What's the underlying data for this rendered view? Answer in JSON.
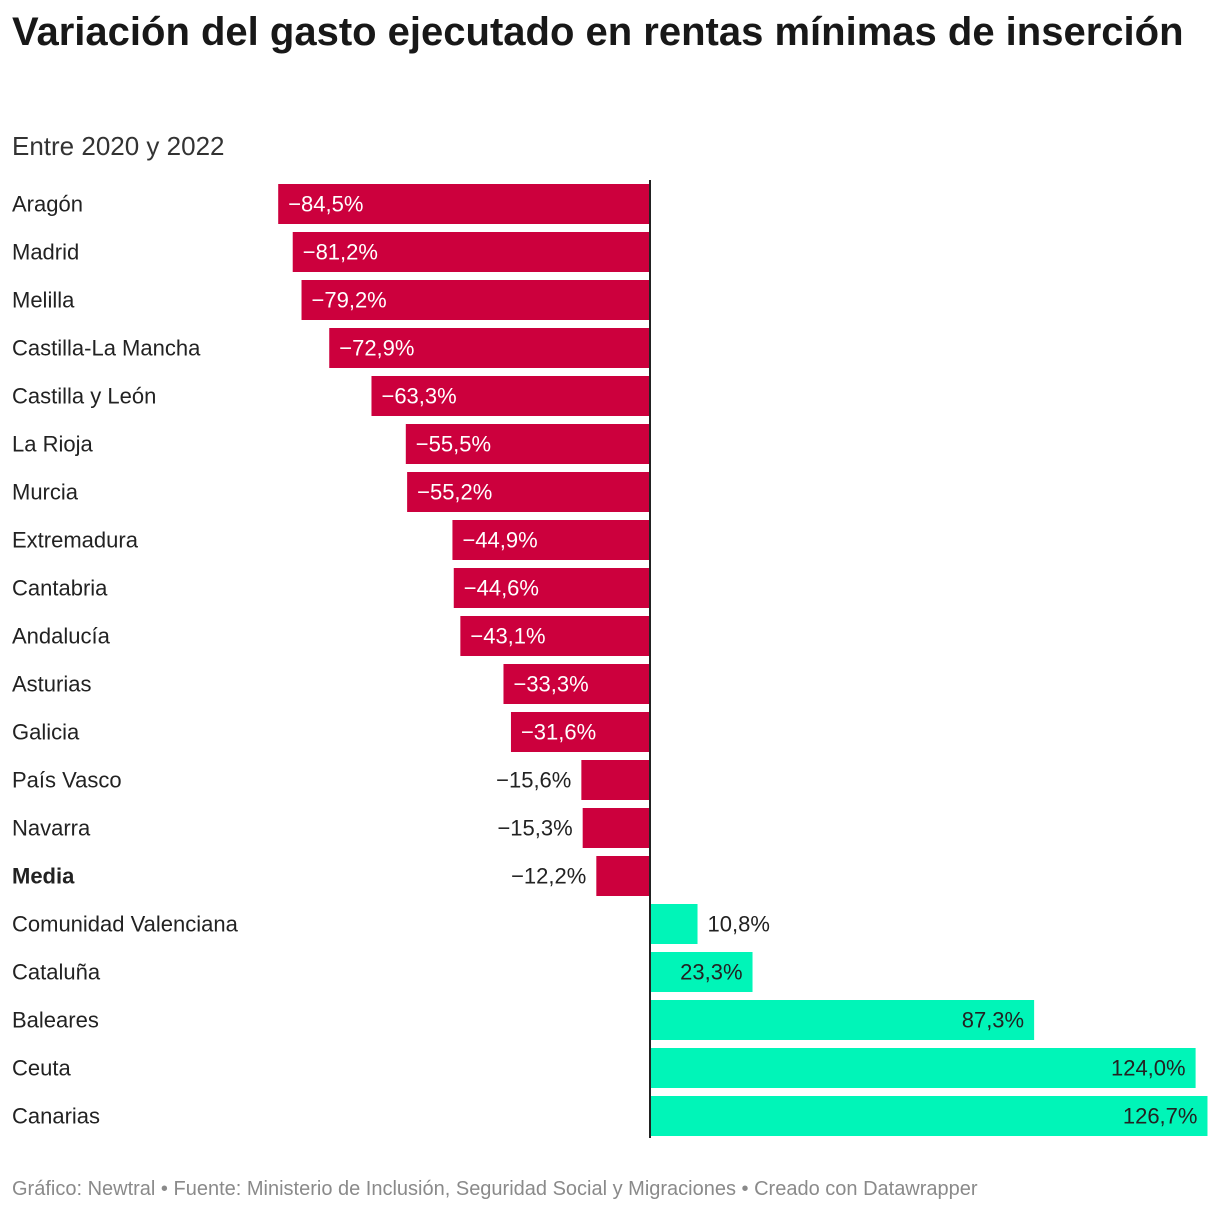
{
  "title": "Variación del gasto ejecutado en rentas mínimas de inserción",
  "subtitle": "Entre 2020 y 2022",
  "footer": "Gráfico: Newtral • Fuente: Ministerio de Inclusión, Seguridad Social y Migraciones • Creado con Datawrapper",
  "colors": {
    "negative": "#cc003d",
    "positive": "#00f5b8",
    "axis": "#222222",
    "label": "#222222",
    "value_inside_negative": "#ffffff",
    "value_inside_positive": "#222222"
  },
  "chart_data": {
    "type": "bar",
    "orientation": "horizontal",
    "unit": "%",
    "highlight": "Media",
    "categories": [
      "Aragón",
      "Madrid",
      "Melilla",
      "Castilla-La Mancha",
      "Castilla y León",
      "La Rioja",
      "Murcia",
      "Extremadura",
      "Cantabria",
      "Andalucía",
      "Asturias",
      "Galicia",
      "País Vasco",
      "Navarra",
      "Media",
      "Comunidad Valenciana",
      "Cataluña",
      "Baleares",
      "Ceuta",
      "Canarias"
    ],
    "values": [
      -84.5,
      -81.2,
      -79.2,
      -72.9,
      -63.3,
      -55.5,
      -55.2,
      -44.9,
      -44.6,
      -43.1,
      -33.3,
      -31.6,
      -15.6,
      -15.3,
      -12.2,
      10.8,
      23.3,
      87.3,
      124.0,
      126.7
    ],
    "value_labels": [
      "−84,5%",
      "−81,2%",
      "−79,2%",
      "−72,9%",
      "−63,3%",
      "−55,5%",
      "−55,2%",
      "−44,9%",
      "−44,6%",
      "−43,1%",
      "−33,3%",
      "−31,6%",
      "−15,6%",
      "−15,3%",
      "−12,2%",
      "10,8%",
      "23,3%",
      "87,3%",
      "124,0%",
      "126,7%"
    ],
    "xlim": [
      -84.5,
      126.7
    ],
    "grid": false,
    "legend": "none"
  }
}
